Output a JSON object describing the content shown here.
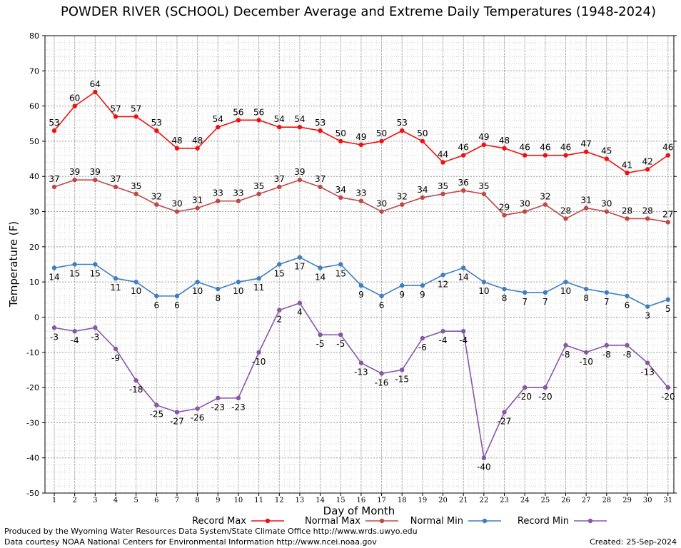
{
  "chart_data": {
    "type": "line",
    "title": "POWDER RIVER (SCHOOL) December Average and Extreme Daily Temperatures (1948-2024)",
    "xlabel": "Day of Month",
    "ylabel": "Temperature (F)",
    "ylim": [
      -50,
      80
    ],
    "yticks": [
      -50,
      -40,
      -30,
      -20,
      -10,
      0,
      10,
      20,
      30,
      40,
      50,
      60,
      70,
      80
    ],
    "x": [
      1,
      2,
      3,
      4,
      5,
      6,
      7,
      8,
      9,
      10,
      11,
      12,
      13,
      14,
      15,
      16,
      17,
      18,
      19,
      20,
      21,
      22,
      23,
      24,
      25,
      26,
      27,
      28,
      29,
      30,
      31
    ],
    "grid": true,
    "legend_position": "bottom",
    "series": [
      {
        "name": "Record Max",
        "color": "#ee1111",
        "label_pos": "above",
        "values": [
          53,
          60,
          64,
          57,
          57,
          53,
          48,
          48,
          54,
          56,
          56,
          54,
          54,
          53,
          50,
          49,
          50,
          53,
          50,
          44,
          46,
          49,
          48,
          46,
          46,
          46,
          47,
          45,
          41,
          42,
          46
        ]
      },
      {
        "name": "Normal Max",
        "color": "#c04848",
        "label_pos": "above",
        "values": [
          37,
          39,
          39,
          37,
          35,
          32,
          30,
          31,
          33,
          33,
          35,
          37,
          39,
          37,
          34,
          33,
          30,
          32,
          34,
          35,
          36,
          35,
          29,
          30,
          32,
          28,
          31,
          30,
          28,
          28,
          27
        ]
      },
      {
        "name": "Normal Min",
        "color": "#3f7fbf",
        "label_pos": "below",
        "values": [
          14,
          15,
          15,
          11,
          10,
          6,
          6,
          10,
          8,
          10,
          11,
          15,
          17,
          14,
          15,
          9,
          6,
          9,
          9,
          12,
          14,
          10,
          8,
          7,
          7,
          10,
          8,
          7,
          6,
          3,
          5
        ]
      },
      {
        "name": "Record Min",
        "color": "#8856a6",
        "label_pos": "below",
        "values": [
          -3,
          -4,
          -3,
          -9,
          -18,
          -25,
          -27,
          -26,
          -23,
          -23,
          -10,
          2,
          4,
          -5,
          -5,
          -13,
          -16,
          -15,
          -6,
          -4,
          -4,
          -40,
          -27,
          -20,
          -20,
          -8,
          -10,
          -8,
          -8,
          -13,
          -20
        ]
      }
    ]
  },
  "footer": {
    "credit_line1": "Produced by the Wyoming Water Resources Data System/State Climate Office http://www.wrds.uwyo.edu",
    "credit_line2": "Data courtesy NOAA National Centers for Environmental Information http://www.ncei.noaa.gov",
    "created_label": "Created:",
    "created_date": "25-Sep-2024"
  }
}
